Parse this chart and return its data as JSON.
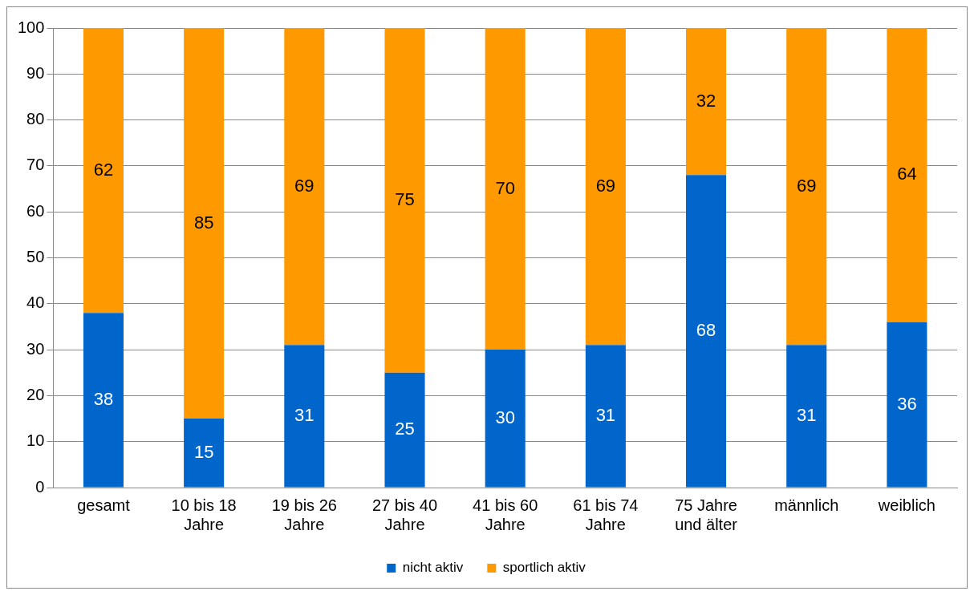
{
  "chart_data": {
    "type": "bar",
    "stacked": true,
    "categories": [
      "gesamt",
      "10 bis 18 Jahre",
      "19 bis 26 Jahre",
      "27 bis 40 Jahre",
      "41 bis 60 Jahre",
      "61 bis 74 Jahre",
      "75 Jahre und älter",
      "männlich",
      "weiblich"
    ],
    "series": [
      {
        "name": "nicht aktiv",
        "color": "#0066cc",
        "values": [
          38,
          15,
          31,
          25,
          30,
          31,
          68,
          31,
          36
        ]
      },
      {
        "name": "sportlich aktiv",
        "color": "#ff9900",
        "values": [
          62,
          85,
          69,
          75,
          70,
          69,
          32,
          69,
          64
        ]
      }
    ],
    "ylim": [
      0,
      100
    ],
    "yticks": [
      0,
      10,
      20,
      30,
      40,
      50,
      60,
      70,
      80,
      90,
      100
    ],
    "grid": "y",
    "legend": "bottom",
    "data_labels": true
  }
}
